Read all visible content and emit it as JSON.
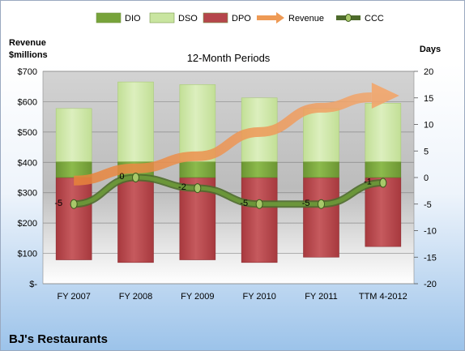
{
  "company": "BJ's Restaurants",
  "chart_data": {
    "type": "bar",
    "title": "12-Month Periods",
    "ylabel_left": "Revenue\n$millions",
    "ylabel_right": "Days",
    "categories": [
      "FY 2007",
      "FY 2008",
      "FY 2009",
      "FY 2010",
      "FY 2011",
      "TTM 4-2012"
    ],
    "left_ticks": [
      "$-",
      "$100",
      "$200",
      "$300",
      "$400",
      "$500",
      "$600",
      "$700"
    ],
    "ylim_left": [
      0,
      700
    ],
    "right_ticks": [
      "-20",
      "-15",
      "-10",
      "-5",
      "0",
      "5",
      "10",
      "15",
      "20"
    ],
    "ylim_right": [
      -20,
      20
    ],
    "legend": [
      {
        "name": "DIO",
        "color": "#77a33a"
      },
      {
        "name": "DSO",
        "color": "#c9e5a0"
      },
      {
        "name": "DPO",
        "color": "#b5464b"
      },
      {
        "name": "Revenue",
        "color": "#ee9a55"
      },
      {
        "name": "CCC",
        "color": "#6d9a3a"
      }
    ],
    "stacked_days": [
      {
        "DPO": [
          15.5,
          16,
          15.5,
          16,
          15,
          13
        ],
        "DIO": [
          3,
          3,
          3,
          3,
          3,
          3
        ],
        "DSO": [
          10,
          15,
          14.5,
          12,
          10,
          11
        ]
      }
    ],
    "series": [
      {
        "name": "DPO",
        "values": [
          -15.5,
          -16,
          -15.5,
          -16,
          -15,
          -13
        ]
      },
      {
        "name": "DIO",
        "values": [
          3,
          3,
          3,
          3,
          3,
          3
        ]
      },
      {
        "name": "DSO",
        "values": [
          10,
          15,
          14.5,
          12,
          10,
          11
        ]
      },
      {
        "name": "Revenue",
        "values": [
          340,
          380,
          420,
          500,
          580,
          620
        ]
      },
      {
        "name": "CCC",
        "values": [
          -5,
          0,
          -2,
          -5,
          -5,
          -1
        ]
      }
    ],
    "ccc_labels": [
      "-5",
      "0",
      "-2",
      "-5",
      "-5",
      "-1"
    ],
    "grid": true
  }
}
